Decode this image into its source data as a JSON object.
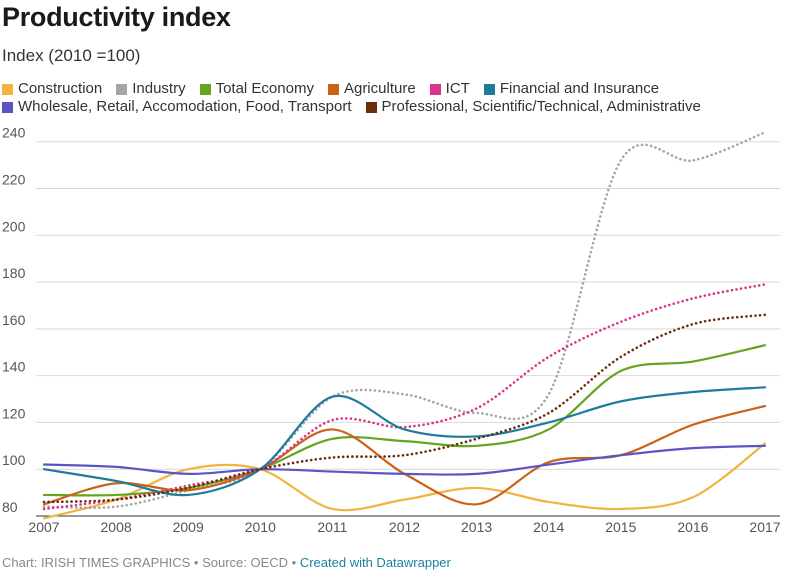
{
  "header": {
    "title": "Productivity index",
    "subtitle": "Index (2010 =100)"
  },
  "footer": {
    "source": "Chart: IRISH TIMES GRAPHICS • Source: OECD •",
    "link": "Created with Datawrapper"
  },
  "chart_data": {
    "type": "line",
    "title": "Productivity index",
    "subtitle": "Index (2010 =100)",
    "x": [
      "2007",
      "2008",
      "2009",
      "2010",
      "2011",
      "2012",
      "2013",
      "2014",
      "2015",
      "2016",
      "2017"
    ],
    "ylim": [
      80,
      245
    ],
    "yticks": [
      80,
      100,
      120,
      140,
      160,
      180,
      200,
      220,
      240
    ],
    "grid": true,
    "legend_position": "top",
    "series": [
      {
        "name": "Construction",
        "color": "#f2b440",
        "dashed": false,
        "values": [
          79,
          87,
          100,
          100,
          83,
          87,
          92,
          86,
          83,
          88,
          111
        ]
      },
      {
        "name": "Industry",
        "color": "#a5a5a5",
        "dashed": true,
        "values": [
          84,
          84,
          91,
          100,
          131,
          132,
          124,
          132,
          232,
          232,
          244
        ]
      },
      {
        "name": "Total Economy",
        "color": "#64a51e",
        "dashed": false,
        "values": [
          89,
          89,
          92,
          100,
          113,
          112,
          110,
          117,
          142,
          146,
          153
        ]
      },
      {
        "name": "Agriculture",
        "color": "#cb6216",
        "dashed": false,
        "values": [
          85,
          94,
          91,
          100,
          117,
          98,
          85,
          103,
          106,
          119,
          127
        ]
      },
      {
        "name": "ICT",
        "color": "#d9358b",
        "dashed": true,
        "values": [
          83,
          87,
          93,
          100,
          121,
          118,
          126,
          148,
          163,
          173,
          179
        ]
      },
      {
        "name": "Financial and Insurance",
        "color": "#1e7b9c",
        "dashed": false,
        "values": [
          100,
          95,
          89,
          100,
          131,
          117,
          114,
          120,
          129,
          133,
          135
        ]
      },
      {
        "name": "Wholesale, Retail, Accomodation, Food, Transport",
        "color": "#5a55c4",
        "dashed": false,
        "values": [
          102,
          101,
          98,
          100,
          99,
          98,
          98,
          102,
          106,
          109,
          110
        ]
      },
      {
        "name": "Professional, Scientific/Technical, Administrative",
        "color": "#6b2d0c",
        "dashed": true,
        "values": [
          86,
          87,
          92,
          100,
          105,
          106,
          113,
          124,
          148,
          162,
          166
        ]
      }
    ]
  }
}
